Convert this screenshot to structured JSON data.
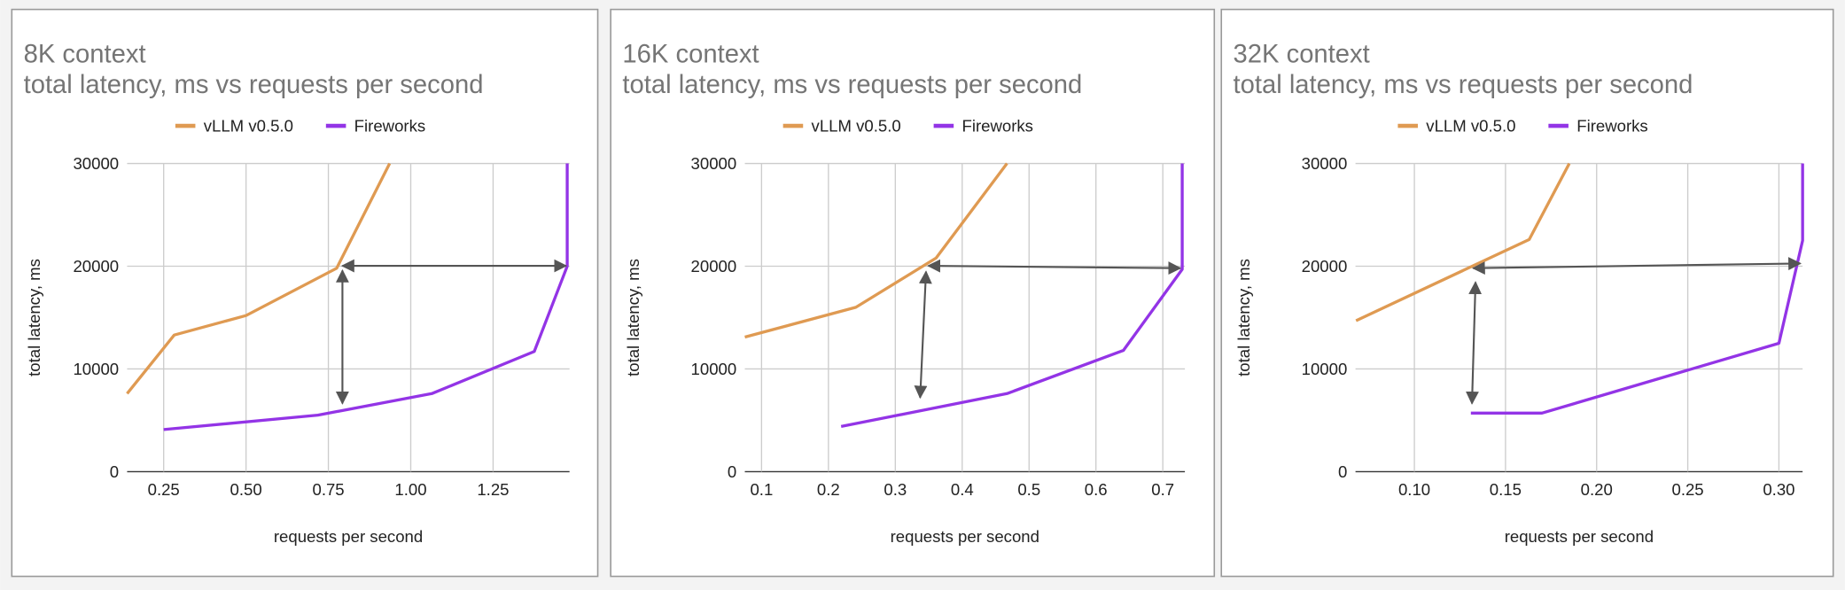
{
  "chart_data": [
    {
      "type": "line",
      "title": "8K context",
      "subtitle": "total latency, ms vs requests per second",
      "x_label": "requests per second",
      "y_label": "total latency, ms",
      "xlim": [
        0.139,
        1.482
      ],
      "ylim": [
        0,
        30000
      ],
      "xticks": [
        0.25,
        {
          "value": 0.5,
          "label": "0.50"
        },
        0.75,
        {
          "value": 1.0,
          "label": "1.00"
        },
        1.25
      ],
      "yticks": [
        0,
        10000,
        20000,
        30000
      ],
      "grid": true,
      "series": [
        {
          "name": "vLLM v0.5.0",
          "color": "#df9a52",
          "x": [
            0.139,
            0.282,
            0.5,
            0.775,
            0.936
          ],
          "values": [
            7600,
            13300,
            15200,
            19800,
            30000
          ]
        },
        {
          "name": "Fireworks",
          "color": "#9334e6",
          "x": [
            0.25,
            0.718,
            1.064,
            1.375,
            1.475,
            1.475
          ],
          "values": [
            4100,
            5500,
            7600,
            11700,
            20000,
            30000
          ]
        }
      ]
    },
    {
      "type": "line",
      "title": "16K context",
      "subtitle": "total latency, ms vs requests per second",
      "x_label": "requests per second",
      "y_label": "total latency, ms",
      "xlim": [
        0.075,
        0.733
      ],
      "ylim": [
        0,
        30000
      ],
      "xticks": [
        0.1,
        0.2,
        0.3,
        0.4,
        0.5,
        0.6,
        0.7
      ],
      "yticks": [
        0,
        10000,
        20000,
        30000
      ],
      "grid": true,
      "series": [
        {
          "name": "vLLM v0.5.0",
          "color": "#df9a52",
          "x": [
            0.075,
            0.241,
            0.361,
            0.467
          ],
          "values": [
            13100,
            16000,
            20800,
            30000
          ]
        },
        {
          "name": "Fireworks",
          "color": "#9334e6",
          "x": [
            0.219,
            0.467,
            0.641,
            0.729,
            0.729
          ],
          "values": [
            4400,
            7600,
            11800,
            19700,
            30000
          ]
        }
      ]
    },
    {
      "type": "line",
      "title": "32K context",
      "subtitle": "total latency, ms vs requests per second",
      "x_label": "requests per second",
      "y_label": "total latency, ms",
      "xlim": [
        0.0677,
        0.313
      ],
      "ylim": [
        0,
        30000
      ],
      "xticks": [
        {
          "value": 0.1,
          "label": "0.10"
        },
        0.15,
        {
          "value": 0.2,
          "label": "0.20"
        },
        0.25,
        {
          "value": 0.3,
          "label": "0.30"
        }
      ],
      "yticks": [
        0,
        10000,
        20000,
        30000
      ],
      "grid": true,
      "series": [
        {
          "name": "vLLM v0.5.0",
          "color": "#df9a52",
          "x": [
            0.068,
            0.163,
            0.185
          ],
          "values": [
            14700,
            22600,
            30000
          ]
        },
        {
          "name": "Fireworks",
          "color": "#9334e6",
          "x": [
            0.131,
            0.17,
            0.3,
            0.313,
            0.313
          ],
          "values": [
            5700,
            5700,
            12500,
            22500,
            30000
          ]
        }
      ]
    }
  ]
}
